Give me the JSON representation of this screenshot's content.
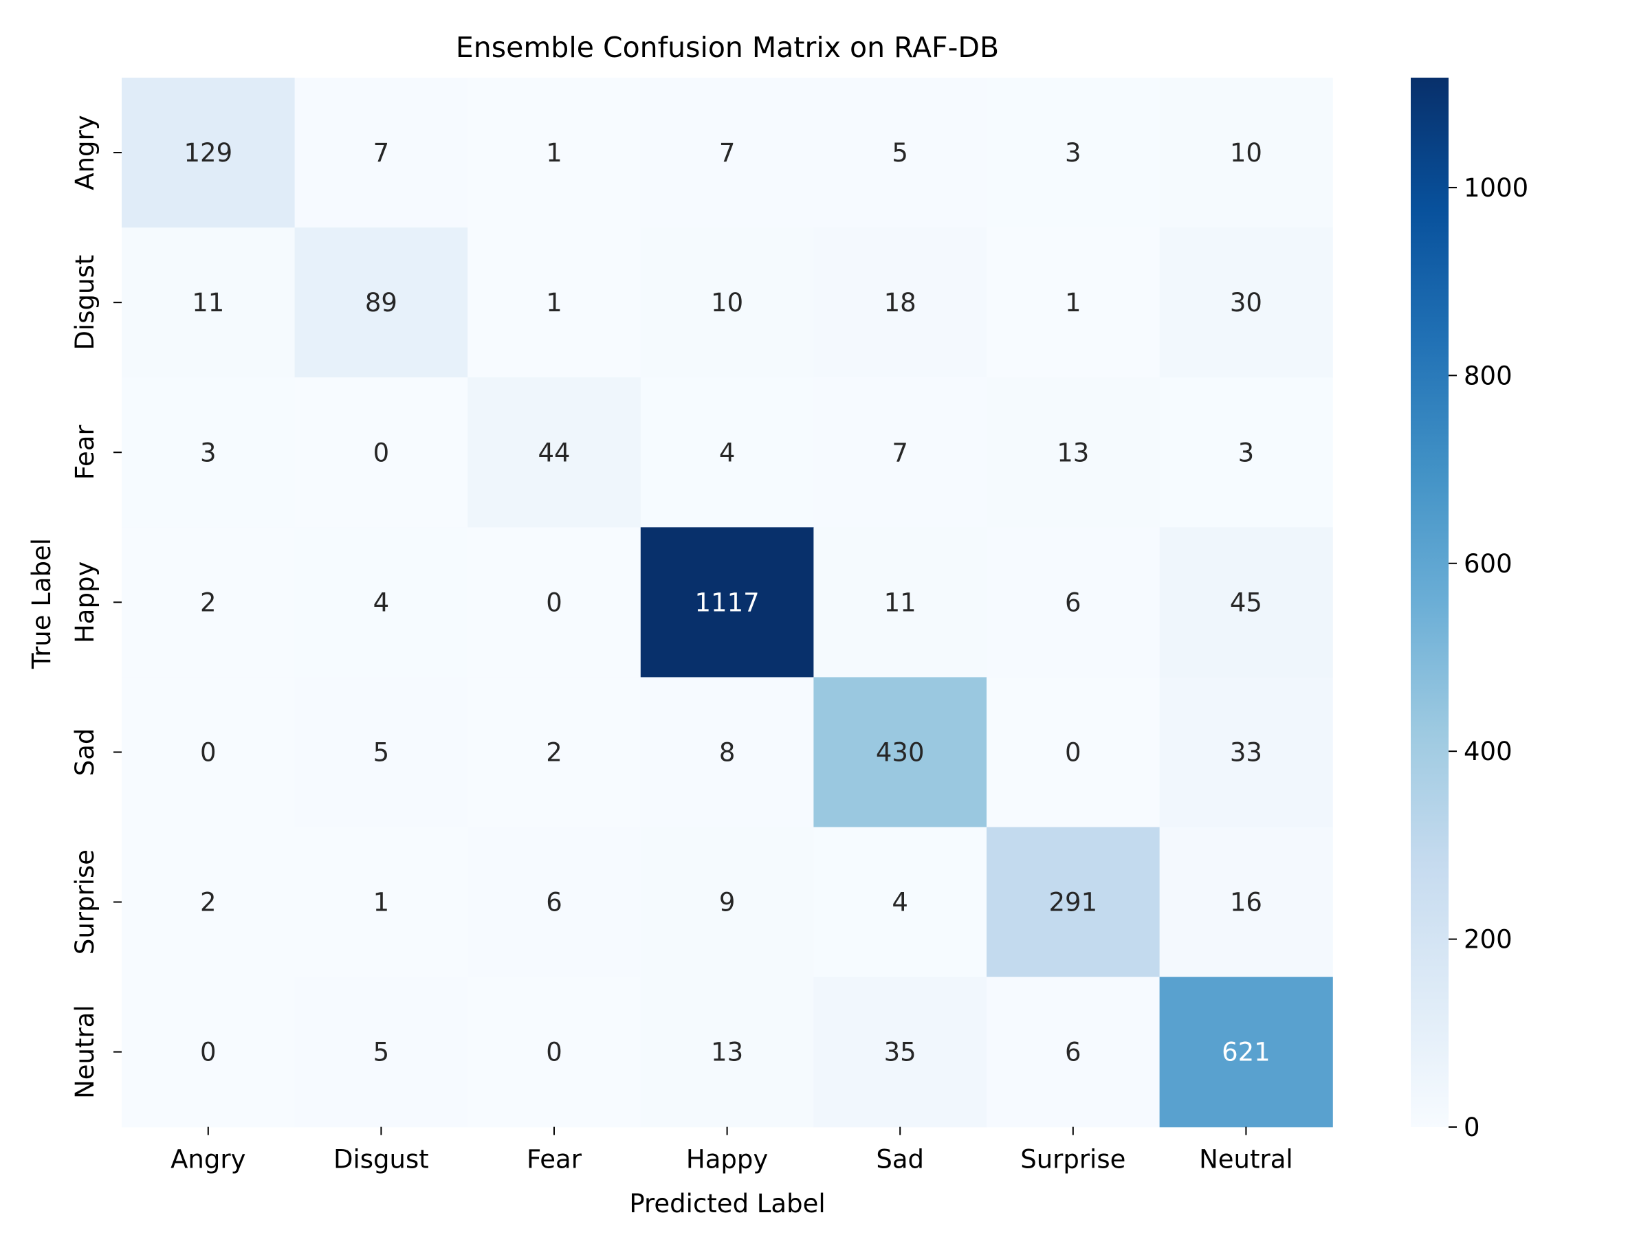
{
  "chart_data": {
    "type": "heatmap",
    "title": "Ensemble Confusion Matrix on RAF-DB",
    "xlabel": "Predicted Label",
    "ylabel": "True Label",
    "x_categories": [
      "Angry",
      "Disgust",
      "Fear",
      "Happy",
      "Sad",
      "Surprise",
      "Neutral"
    ],
    "y_categories": [
      "Angry",
      "Disgust",
      "Fear",
      "Happy",
      "Sad",
      "Surprise",
      "Neutral"
    ],
    "values": [
      [
        129,
        7,
        1,
        7,
        5,
        3,
        10
      ],
      [
        11,
        89,
        1,
        10,
        18,
        1,
        30
      ],
      [
        3,
        0,
        44,
        4,
        7,
        13,
        3
      ],
      [
        2,
        4,
        0,
        1117,
        11,
        6,
        45
      ],
      [
        0,
        5,
        2,
        8,
        430,
        0,
        33
      ],
      [
        2,
        1,
        6,
        9,
        4,
        291,
        16
      ],
      [
        0,
        5,
        0,
        13,
        35,
        6,
        621
      ]
    ],
    "colormap": "Blues",
    "color_range": [
      0,
      1117
    ],
    "colorbar_ticks": [
      0,
      200,
      400,
      600,
      800,
      1000
    ],
    "grid": false
  }
}
